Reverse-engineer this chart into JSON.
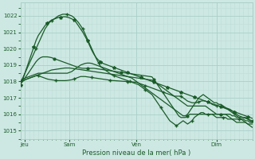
{
  "title": "Pression niveau de la mer( hPa )",
  "bg_color": "#cde8e3",
  "grid_color_major": "#aacfc8",
  "grid_color_minor": "#c0ddd8",
  "line_color": "#1a5c28",
  "ylim": [
    1014.5,
    1022.8
  ],
  "yticks": [
    1015,
    1016,
    1017,
    1018,
    1019,
    1020,
    1021,
    1022
  ],
  "xtick_labels": [
    "Jeu",
    "Sam",
    "Ven",
    "Dim"
  ],
  "xtick_positions": [
    2,
    22,
    52,
    88
  ],
  "total_points": 105,
  "series": [
    {
      "name": "s1_flat",
      "marker": "none",
      "lw": 0.9,
      "y": [
        1018.0,
        1018.0,
        1018.1,
        1018.15,
        1018.2,
        1018.25,
        1018.3,
        1018.35,
        1018.4,
        1018.45,
        1018.5,
        1018.55,
        1018.6,
        1018.65,
        1018.7,
        1018.72,
        1018.74,
        1018.76,
        1018.78,
        1018.8,
        1018.82,
        1018.82,
        1018.82,
        1018.8,
        1018.78,
        1018.76,
        1018.74,
        1018.72,
        1018.7,
        1018.68,
        1018.66,
        1018.64,
        1018.62,
        1018.6,
        1018.58,
        1018.56,
        1018.54,
        1018.52,
        1018.5,
        1018.48,
        1018.46,
        1018.44,
        1018.42,
        1018.4,
        1018.38,
        1018.36,
        1018.34,
        1018.32,
        1018.3,
        1018.28,
        1018.26,
        1018.24,
        1018.22,
        1018.2,
        1018.18,
        1018.16,
        1018.14,
        1018.12,
        1018.1,
        1018.08,
        1018.0,
        1017.9,
        1017.8,
        1017.7,
        1017.6,
        1017.5,
        1017.4,
        1017.3,
        1017.2,
        1017.1,
        1017.0,
        1016.9,
        1016.8,
        1016.7,
        1016.6,
        1016.5,
        1016.5,
        1016.5,
        1016.5,
        1016.5,
        1016.5,
        1016.5,
        1016.5,
        1016.5,
        1016.4,
        1016.3,
        1016.2,
        1016.1,
        1016.0,
        1016.0,
        1016.0,
        1016.0,
        1016.0,
        1016.0,
        1016.0,
        1015.9,
        1015.9,
        1015.8,
        1015.8,
        1015.8,
        1015.8,
        1015.8,
        1015.7,
        1015.6,
        1015.5
      ]
    },
    {
      "name": "s2_rise_peak",
      "marker": "+",
      "marker_every": 7,
      "lw": 0.9,
      "y": [
        1018.0,
        1018.2,
        1018.5,
        1018.8,
        1019.1,
        1019.4,
        1019.7,
        1020.0,
        1020.3,
        1020.6,
        1020.9,
        1021.2,
        1021.4,
        1021.6,
        1021.7,
        1021.8,
        1021.9,
        1022.0,
        1022.05,
        1022.1,
        1022.1,
        1022.1,
        1022.05,
        1022.0,
        1021.9,
        1021.75,
        1021.6,
        1021.4,
        1021.2,
        1020.9,
        1020.6,
        1020.3,
        1020.0,
        1019.7,
        1019.4,
        1019.15,
        1018.9,
        1018.8,
        1018.7,
        1018.6,
        1018.5,
        1018.4,
        1018.35,
        1018.3,
        1018.25,
        1018.2,
        1018.15,
        1018.1,
        1018.05,
        1018.0,
        1017.95,
        1017.9,
        1017.85,
        1017.8,
        1017.7,
        1017.6,
        1017.5,
        1017.4,
        1017.3,
        1017.2,
        1017.0,
        1016.8,
        1016.6,
        1016.4,
        1016.2,
        1016.0,
        1015.8,
        1015.6,
        1015.5,
        1015.4,
        1015.3,
        1015.4,
        1015.5,
        1015.6,
        1015.5,
        1015.4,
        1015.5,
        1015.6,
        1015.8,
        1015.9,
        1016.0,
        1016.1,
        1016.1,
        1016.0,
        1016.0,
        1016.0,
        1016.0,
        1015.9,
        1015.8,
        1015.8,
        1015.8,
        1015.8,
        1015.8,
        1015.7,
        1015.7,
        1015.7,
        1015.7,
        1015.7,
        1015.7,
        1015.7,
        1015.7,
        1015.6,
        1015.6,
        1015.5,
        1015.5
      ]
    },
    {
      "name": "s3_high_peak",
      "marker": "*",
      "marker_every": 6,
      "lw": 0.9,
      "y": [
        1017.8,
        1018.1,
        1018.5,
        1018.9,
        1019.3,
        1019.7,
        1020.1,
        1020.5,
        1020.8,
        1021.0,
        1021.2,
        1021.4,
        1021.55,
        1021.65,
        1021.75,
        1021.8,
        1021.85,
        1021.9,
        1021.92,
        1021.94,
        1021.95,
        1021.92,
        1021.88,
        1021.82,
        1021.75,
        1021.6,
        1021.4,
        1021.2,
        1021.0,
        1020.75,
        1020.5,
        1020.2,
        1019.9,
        1019.65,
        1019.45,
        1019.3,
        1019.2,
        1019.1,
        1019.05,
        1019.0,
        1018.95,
        1018.9,
        1018.85,
        1018.8,
        1018.75,
        1018.7,
        1018.65,
        1018.6,
        1018.55,
        1018.5,
        1018.45,
        1018.4,
        1018.35,
        1018.3,
        1018.25,
        1018.2,
        1018.15,
        1018.1,
        1018.05,
        1018.0,
        1017.95,
        1017.9,
        1017.85,
        1017.8,
        1017.75,
        1017.7,
        1017.65,
        1017.6,
        1017.55,
        1017.5,
        1017.45,
        1017.4,
        1017.35,
        1017.3,
        1017.25,
        1017.2,
        1017.15,
        1017.1,
        1017.05,
        1017.0,
        1016.95,
        1016.9,
        1016.85,
        1016.8,
        1016.75,
        1016.7,
        1016.65,
        1016.6,
        1016.55,
        1016.5,
        1016.45,
        1016.4,
        1016.35,
        1016.3,
        1016.25,
        1016.2,
        1016.15,
        1016.1,
        1016.05,
        1016.0,
        1015.95,
        1015.9,
        1015.85,
        1015.8,
        1015.75
      ]
    },
    {
      "name": "s4_medium",
      "marker": "o",
      "marker_every": 15,
      "lw": 0.9,
      "y": [
        1018.0,
        1018.1,
        1018.2,
        1018.4,
        1018.6,
        1018.8,
        1019.0,
        1019.2,
        1019.35,
        1019.45,
        1019.5,
        1019.5,
        1019.5,
        1019.48,
        1019.45,
        1019.4,
        1019.35,
        1019.3,
        1019.25,
        1019.2,
        1019.15,
        1019.1,
        1019.05,
        1019.0,
        1018.95,
        1018.9,
        1018.85,
        1018.82,
        1018.8,
        1018.8,
        1018.8,
        1018.8,
        1018.8,
        1018.8,
        1018.78,
        1018.76,
        1018.74,
        1018.72,
        1018.7,
        1018.68,
        1018.66,
        1018.64,
        1018.62,
        1018.6,
        1018.58,
        1018.56,
        1018.54,
        1018.52,
        1018.5,
        1018.48,
        1018.46,
        1018.44,
        1018.42,
        1018.4,
        1018.38,
        1018.36,
        1018.34,
        1018.32,
        1018.3,
        1018.28,
        1018.1,
        1017.9,
        1017.7,
        1017.5,
        1017.3,
        1017.1,
        1016.9,
        1016.7,
        1016.5,
        1016.3,
        1016.1,
        1015.9,
        1015.8,
        1015.8,
        1015.8,
        1015.9,
        1016.0,
        1016.0,
        1016.0,
        1016.0,
        1016.0,
        1016.0,
        1016.0,
        1016.0,
        1016.0,
        1016.0,
        1016.0,
        1016.0,
        1016.0,
        1016.0,
        1016.0,
        1016.0,
        1016.0,
        1015.9,
        1015.8,
        1015.7,
        1015.6,
        1015.5,
        1015.5,
        1015.5,
        1015.5,
        1015.5,
        1015.4,
        1015.4,
        1015.4
      ]
    },
    {
      "name": "s5_bump",
      "marker": "none",
      "lw": 0.9,
      "y": [
        1018.1,
        1018.15,
        1018.2,
        1018.25,
        1018.3,
        1018.35,
        1018.4,
        1018.45,
        1018.5,
        1018.5,
        1018.5,
        1018.5,
        1018.5,
        1018.5,
        1018.5,
        1018.5,
        1018.5,
        1018.5,
        1018.5,
        1018.5,
        1018.5,
        1018.5,
        1018.55,
        1018.6,
        1018.7,
        1018.82,
        1018.9,
        1019.0,
        1019.05,
        1019.1,
        1019.12,
        1019.12,
        1019.1,
        1019.05,
        1019.0,
        1018.95,
        1018.9,
        1018.85,
        1018.8,
        1018.75,
        1018.7,
        1018.65,
        1018.6,
        1018.55,
        1018.5,
        1018.45,
        1018.4,
        1018.35,
        1018.3,
        1018.25,
        1018.2,
        1018.1,
        1018.0,
        1017.9,
        1017.8,
        1017.7,
        1017.6,
        1017.5,
        1017.4,
        1017.3,
        1017.2,
        1017.1,
        1017.0,
        1016.9,
        1016.8,
        1016.7,
        1016.6,
        1016.5,
        1016.4,
        1016.3,
        1016.2,
        1016.1,
        1016.0,
        1015.9,
        1015.9,
        1016.0,
        1016.2,
        1016.4,
        1016.6,
        1016.8,
        1017.0,
        1017.1,
        1017.2,
        1017.1,
        1017.0,
        1016.9,
        1016.8,
        1016.7,
        1016.7,
        1016.6,
        1016.6,
        1016.5,
        1016.4,
        1016.3,
        1016.2,
        1016.1,
        1016.0,
        1015.9,
        1015.8,
        1015.7,
        1015.6,
        1015.5,
        1015.4,
        1015.3,
        1015.2
      ]
    },
    {
      "name": "s6_wavy",
      "marker": "+",
      "marker_every": 8,
      "lw": 0.9,
      "y": [
        1018.0,
        1018.05,
        1018.1,
        1018.15,
        1018.2,
        1018.25,
        1018.3,
        1018.35,
        1018.35,
        1018.3,
        1018.25,
        1018.2,
        1018.15,
        1018.12,
        1018.1,
        1018.08,
        1018.06,
        1018.05,
        1018.05,
        1018.05,
        1018.05,
        1018.06,
        1018.08,
        1018.1,
        1018.15,
        1018.2,
        1018.25,
        1018.3,
        1018.3,
        1018.3,
        1018.28,
        1018.26,
        1018.24,
        1018.22,
        1018.2,
        1018.18,
        1018.16,
        1018.14,
        1018.12,
        1018.1,
        1018.08,
        1018.06,
        1018.05,
        1018.04,
        1018.03,
        1018.02,
        1018.01,
        1018.0,
        1017.99,
        1017.98,
        1017.97,
        1017.96,
        1017.95,
        1017.9,
        1017.85,
        1017.8,
        1017.75,
        1017.7,
        1017.65,
        1017.6,
        1017.55,
        1017.5,
        1017.45,
        1017.4,
        1017.35,
        1017.3,
        1017.25,
        1017.2,
        1017.15,
        1017.1,
        1017.1,
        1017.1,
        1017.1,
        1017.0,
        1016.9,
        1016.8,
        1016.75,
        1016.7,
        1016.7,
        1016.7,
        1016.75,
        1016.8,
        1016.82,
        1016.8,
        1016.75,
        1016.7,
        1016.6,
        1016.55,
        1016.5,
        1016.5,
        1016.5,
        1016.45,
        1016.4,
        1016.35,
        1016.3,
        1016.2,
        1016.1,
        1016.0,
        1015.9,
        1015.85,
        1015.8,
        1015.75,
        1015.7,
        1015.65,
        1015.6
      ]
    }
  ]
}
